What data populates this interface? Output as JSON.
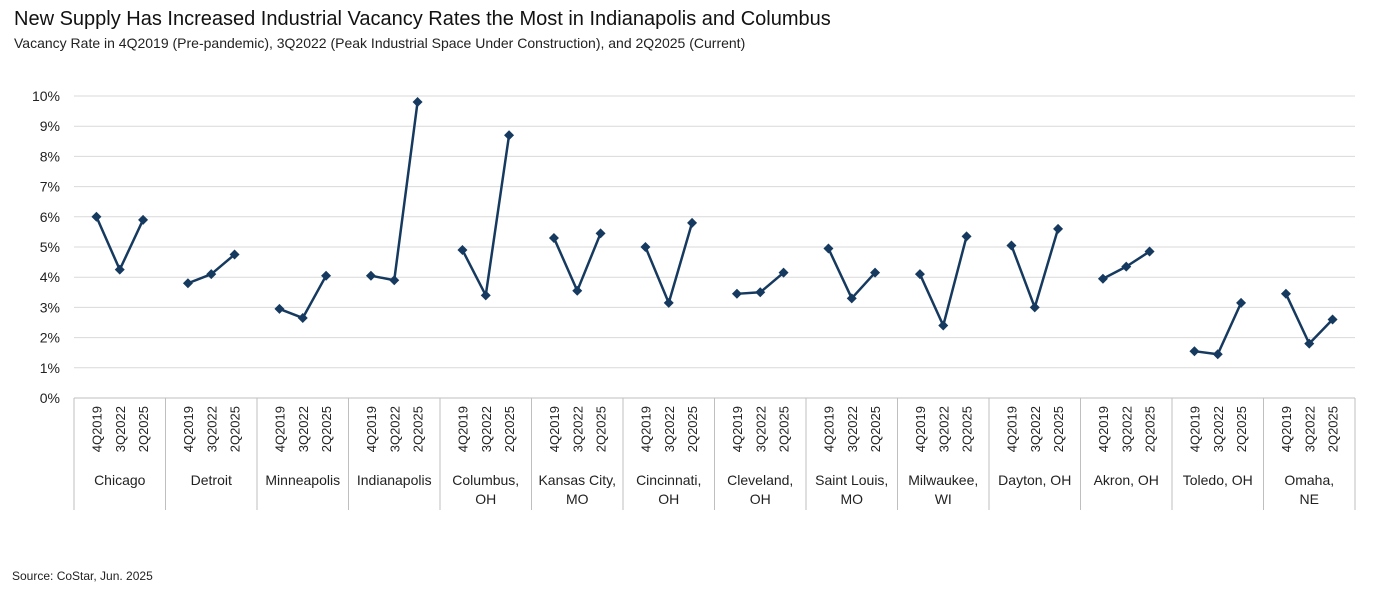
{
  "header": {
    "title": "New Supply Has Increased Industrial Vacancy Rates the Most in Indianapolis and Columbus",
    "subtitle": "Vacancy Rate in 4Q2019 (Pre-pandemic), 3Q2022 (Peak Industrial Space Under Construction), and 2Q2025 (Current)"
  },
  "source": "Source: CoStar, Jun. 2025",
  "colors": {
    "line": "#163a5f",
    "grid": "#d9d9d9",
    "axis": "#bfbfbf"
  },
  "chart_data": {
    "type": "line",
    "title": "New Supply Has Increased Industrial Vacancy Rates the Most in Indianapolis and Columbus",
    "subtitle": "Vacancy Rate in 4Q2019 (Pre-pandemic), 3Q2022 (Peak Industrial Space Under Construction), and 2Q2025 (Current)",
    "ylabel": "",
    "xlabel": "",
    "ylim": [
      0,
      10
    ],
    "yticks": [
      "0%",
      "1%",
      "2%",
      "3%",
      "4%",
      "5%",
      "6%",
      "7%",
      "8%",
      "9%",
      "10%"
    ],
    "grid": true,
    "periods": [
      "4Q2019",
      "3Q2022",
      "2Q2025"
    ],
    "groups": [
      {
        "name": [
          "Chicago"
        ],
        "values": [
          6.0,
          4.25,
          5.9
        ]
      },
      {
        "name": [
          "Detroit"
        ],
        "values": [
          3.8,
          4.1,
          4.75
        ]
      },
      {
        "name": [
          "Minneapolis"
        ],
        "values": [
          2.95,
          2.65,
          4.05
        ]
      },
      {
        "name": [
          "Indianapolis"
        ],
        "values": [
          4.05,
          3.9,
          9.8
        ]
      },
      {
        "name": [
          "Columbus,",
          "OH"
        ],
        "values": [
          4.9,
          3.4,
          8.7
        ]
      },
      {
        "name": [
          "Kansas City,",
          "MO"
        ],
        "values": [
          5.3,
          3.55,
          5.45
        ]
      },
      {
        "name": [
          "Cincinnati,",
          "OH"
        ],
        "values": [
          5.0,
          3.15,
          5.8
        ]
      },
      {
        "name": [
          "Cleveland,",
          "OH"
        ],
        "values": [
          3.45,
          3.5,
          4.15
        ]
      },
      {
        "name": [
          "Saint Louis,",
          "MO"
        ],
        "values": [
          4.95,
          3.3,
          4.15
        ]
      },
      {
        "name": [
          "Milwaukee,",
          "WI"
        ],
        "values": [
          4.1,
          2.4,
          5.35
        ]
      },
      {
        "name": [
          "Dayton, OH"
        ],
        "values": [
          5.05,
          3.0,
          5.6
        ]
      },
      {
        "name": [
          "Akron, OH"
        ],
        "values": [
          3.95,
          4.35,
          4.85
        ]
      },
      {
        "name": [
          "Toledo, OH"
        ],
        "values": [
          1.55,
          1.45,
          3.15
        ]
      },
      {
        "name": [
          "Omaha,",
          "NE"
        ],
        "values": [
          3.45,
          1.8,
          2.6
        ]
      }
    ]
  }
}
